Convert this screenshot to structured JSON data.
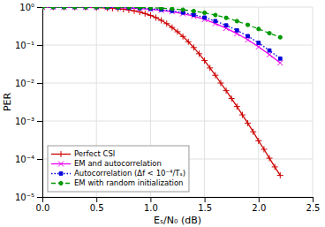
{
  "chart_data": {
    "type": "line",
    "xlabel": "Eₛ/N₀ (dB)",
    "ylabel": "PER",
    "log": "y",
    "grid": true,
    "legend": "lower left",
    "xlim": [
      0,
      2.5
    ],
    "xticks": [
      {
        "value": 0,
        "label": "0.0"
      },
      0.5,
      {
        "value": 1,
        "label": "1.0"
      },
      1.5,
      {
        "value": 2,
        "label": "2.0"
      },
      2.5
    ],
    "ylim": [
      1e-05,
      1
    ],
    "yticks": [
      {
        "value": 1e-05,
        "label": "10⁻⁵"
      },
      {
        "value": 0.0001,
        "label": "10⁻⁴"
      },
      {
        "value": 0.001,
        "label": "10⁻³"
      },
      {
        "value": 0.01,
        "label": "10⁻²"
      },
      {
        "value": 0.1,
        "label": "10⁻¹"
      },
      {
        "value": 1,
        "label": "10⁰"
      }
    ],
    "series": [
      {
        "name": "Perfect CSI",
        "color": "#cc0000",
        "marker": "plus",
        "line_style": "solid",
        "x": [
          0.0,
          0.1,
          0.2,
          0.3,
          0.4,
          0.5,
          0.6,
          0.65,
          0.7,
          0.75,
          0.8,
          0.85,
          0.9,
          0.95,
          1.0,
          1.05,
          1.1,
          1.15,
          1.2,
          1.25,
          1.3,
          1.35,
          1.4,
          1.45,
          1.5,
          1.55,
          1.6,
          1.65,
          1.7,
          1.75,
          1.8,
          1.85,
          1.9,
          1.95,
          2.0,
          2.05,
          2.1,
          2.15,
          2.2
        ],
        "values": [
          1.0,
          0.999,
          0.997,
          0.993,
          0.985,
          0.97,
          0.945,
          0.928,
          0.905,
          0.876,
          0.84,
          0.795,
          0.74,
          0.677,
          0.605,
          0.528,
          0.447,
          0.366,
          0.29,
          0.224,
          0.168,
          0.122,
          0.086,
          0.059,
          0.039,
          0.025,
          0.016,
          0.01,
          0.0063,
          0.0039,
          0.0024,
          0.00145,
          0.00088,
          0.00052,
          0.0003,
          0.00018,
          0.000105,
          6.2e-05,
          3.7e-05
        ]
      },
      {
        "name": "EM and autocorrelation",
        "color": "#ee00ee",
        "marker": "x",
        "line_style": "solid",
        "x": [
          0.0,
          0.1,
          0.2,
          0.3,
          0.4,
          0.5,
          0.6,
          0.7,
          0.8,
          0.9,
          1.0,
          1.1,
          1.2,
          1.3,
          1.4,
          1.5,
          1.6,
          1.7,
          1.8,
          1.9,
          2.0,
          2.1,
          2.2
        ],
        "values": [
          1.0,
          1.0,
          0.999,
          0.997,
          0.994,
          0.988,
          0.978,
          0.964,
          0.944,
          0.915,
          0.875,
          0.822,
          0.755,
          0.672,
          0.576,
          0.473,
          0.37,
          0.278,
          0.2,
          0.138,
          0.09,
          0.056,
          0.034
        ]
      },
      {
        "name": "Autocorrelation (Δf < 10⁻⁴/Tₛ)",
        "color": "#0000dd",
        "marker": "square",
        "line_style": "dotted",
        "x": [
          0.0,
          0.1,
          0.2,
          0.3,
          0.4,
          0.5,
          0.6,
          0.7,
          0.8,
          0.9,
          1.0,
          1.1,
          1.2,
          1.3,
          1.4,
          1.5,
          1.6,
          1.7,
          1.8,
          1.9,
          2.0,
          2.1,
          2.2
        ],
        "values": [
          1.0,
          1.0,
          1.0,
          0.999,
          0.997,
          0.993,
          0.986,
          0.975,
          0.958,
          0.934,
          0.9,
          0.854,
          0.793,
          0.717,
          0.628,
          0.53,
          0.428,
          0.33,
          0.244,
          0.172,
          0.114,
          0.072,
          0.044
        ]
      },
      {
        "name": "EM with random initialization",
        "color": "#009900",
        "marker": "circle",
        "line_style": "dashed",
        "x": [
          0.0,
          0.1,
          0.2,
          0.3,
          0.4,
          0.5,
          0.6,
          0.7,
          0.8,
          0.9,
          1.0,
          1.1,
          1.2,
          1.3,
          1.4,
          1.5,
          1.6,
          1.7,
          1.8,
          1.9,
          2.0,
          2.1,
          2.2
        ],
        "values": [
          1.0,
          1.0,
          1.0,
          1.0,
          0.999,
          0.998,
          0.996,
          0.992,
          0.986,
          0.976,
          0.96,
          0.936,
          0.9,
          0.85,
          0.785,
          0.706,
          0.616,
          0.52,
          0.426,
          0.34,
          0.265,
          0.205,
          0.16
        ]
      }
    ]
  }
}
